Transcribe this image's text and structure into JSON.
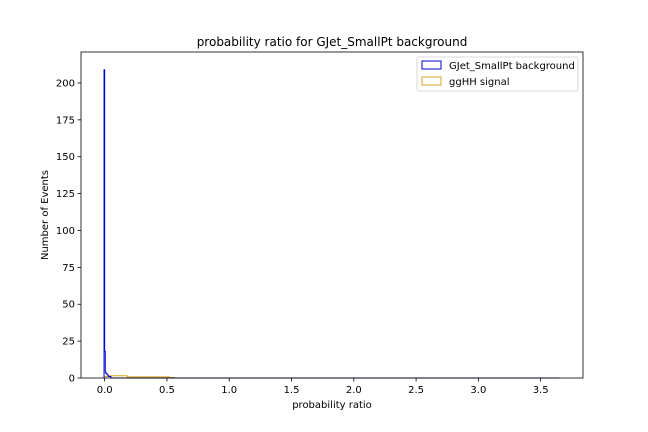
{
  "chart_data": {
    "type": "histogram",
    "title": "probability ratio for GJet_SmallPt background",
    "xlabel": "probability ratio",
    "ylabel": "Number of Events",
    "xlim": [
      -0.19,
      3.84
    ],
    "ylim": [
      0,
      221
    ],
    "xticks": [
      "0.0",
      "0.5",
      "1.0",
      "1.5",
      "2.0",
      "2.5",
      "3.0",
      "3.5"
    ],
    "yticks": [
      "0",
      "25",
      "50",
      "75",
      "100",
      "125",
      "150",
      "175",
      "200"
    ],
    "grid": false,
    "legend_position": "top-right",
    "series": [
      {
        "name": "GJet_SmallPt background",
        "color": "#0000cd",
        "histtype": "step",
        "bins": [
          {
            "x0": -0.005,
            "x1": 0.0,
            "count": 209
          },
          {
            "x0": 0.0,
            "x1": 0.005,
            "count": 18
          },
          {
            "x0": 0.005,
            "x1": 0.01,
            "count": 4
          },
          {
            "x0": 0.01,
            "x1": 0.02,
            "count": 3
          },
          {
            "x0": 0.02,
            "x1": 0.03,
            "count": 2
          },
          {
            "x0": 0.03,
            "x1": 0.05,
            "count": 1
          },
          {
            "x0": 0.05,
            "x1": 3.65,
            "count": 0
          }
        ]
      },
      {
        "name": "ggHH signal",
        "color": "#daa520",
        "histtype": "step",
        "bins": [
          {
            "x0": -0.005,
            "x1": 0.04,
            "count": 1
          },
          {
            "x0": 0.04,
            "x1": 0.18,
            "count": 1.5
          },
          {
            "x0": 0.18,
            "x1": 0.52,
            "count": 0.8
          },
          {
            "x0": 0.52,
            "x1": 0.56,
            "count": 0.3
          },
          {
            "x0": 0.56,
            "x1": 3.65,
            "count": 0
          }
        ]
      }
    ]
  }
}
